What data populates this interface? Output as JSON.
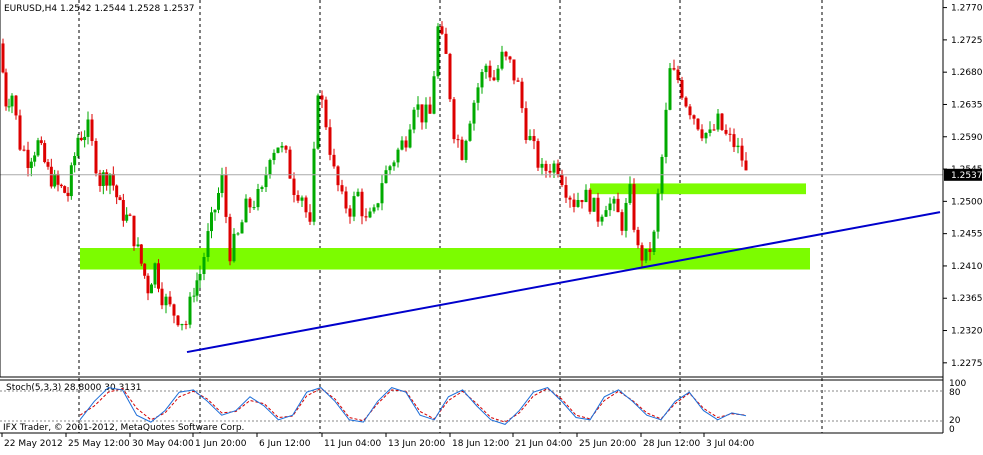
{
  "window": {
    "symbol_header": "EURUSD,H4  1.2542 1.2544 1.2528 1.2537",
    "copyright": "IFX Trader, © 2001-2012, MetaQuotes Software Corp."
  },
  "colors": {
    "background": "#ffffff",
    "bull": "#00aa00",
    "bear": "#dd0000",
    "zone": "#7cfc00",
    "trendline": "#0000cc",
    "grid": "#000000",
    "stoch_main": "#1e6fd9",
    "stoch_signal": "#d40000",
    "bid_tag": "#000000"
  },
  "price_axis": {
    "ticks": [
      "1.2770",
      "1.2725",
      "1.2680",
      "1.2635",
      "1.2590",
      "1.2545",
      "1.2500",
      "1.2455",
      "1.2410",
      "1.2365",
      "1.2320",
      "1.2275"
    ],
    "current_price": "1.2537"
  },
  "stoch_panel": {
    "title": "Stoch(5,3,3) 28.8000 30.3131",
    "axis_ticks": [
      "100",
      "80",
      "20",
      "0"
    ]
  },
  "time_axis": {
    "labels": [
      "22 May 2012",
      "25 May 12:00",
      "30 May 04:00",
      "1 Jun 20:00",
      "6 Jun 12:00",
      "11 Jun 04:00",
      "13 Jun 20:00",
      "18 Jun 12:00",
      "21 Jun 04:00",
      "25 Jun 20:00",
      "28 Jun 12:00",
      "3 Jul 04:00"
    ]
  },
  "chart_data": {
    "type": "candlestick",
    "symbol": "EURUSD",
    "timeframe": "H4",
    "ylim": [
      1.2265,
      1.2775
    ],
    "current_price": 1.2537,
    "ohlc": [
      1.2542,
      1.2544,
      1.2528,
      1.2537
    ],
    "close_path": [
      [
        0,
        1.272
      ],
      [
        6,
        1.264
      ],
      [
        12,
        1.265
      ],
      [
        20,
        1.258
      ],
      [
        28,
        1.256
      ],
      [
        38,
        1.258
      ],
      [
        48,
        1.254
      ],
      [
        58,
        1.252
      ],
      [
        68,
        1.251
      ],
      [
        78,
        1.259
      ],
      [
        88,
        1.26
      ],
      [
        100,
        1.253
      ],
      [
        110,
        1.254
      ],
      [
        120,
        1.249
      ],
      [
        130,
        1.247
      ],
      [
        138,
        1.243
      ],
      [
        148,
        1.238
      ],
      [
        155,
        1.241
      ],
      [
        162,
        1.237
      ],
      [
        170,
        1.235
      ],
      [
        178,
        1.234
      ],
      [
        186,
        1.233
      ],
      [
        194,
        1.238
      ],
      [
        200,
        1.24
      ],
      [
        208,
        1.245
      ],
      [
        215,
        1.249
      ],
      [
        222,
        1.253
      ],
      [
        230,
        1.243
      ],
      [
        238,
        1.245
      ],
      [
        246,
        1.249
      ],
      [
        254,
        1.25
      ],
      [
        262,
        1.251
      ],
      [
        270,
        1.257
      ],
      [
        278,
        1.258
      ],
      [
        286,
        1.256
      ],
      [
        294,
        1.252
      ],
      [
        302,
        1.251
      ],
      [
        310,
        1.246
      ],
      [
        318,
        1.266
      ],
      [
        326,
        1.261
      ],
      [
        334,
        1.254
      ],
      [
        342,
        1.25
      ],
      [
        350,
        1.249
      ],
      [
        358,
        1.251
      ],
      [
        366,
        1.247
      ],
      [
        374,
        1.248
      ],
      [
        382,
        1.253
      ],
      [
        390,
        1.255
      ],
      [
        398,
        1.257
      ],
      [
        406,
        1.259
      ],
      [
        414,
        1.264
      ],
      [
        422,
        1.262
      ],
      [
        430,
        1.262
      ],
      [
        438,
        1.274
      ],
      [
        446,
        1.27
      ],
      [
        454,
        1.26
      ],
      [
        462,
        1.257
      ],
      [
        470,
        1.262
      ],
      [
        478,
        1.266
      ],
      [
        486,
        1.269
      ],
      [
        494,
        1.267
      ],
      [
        502,
        1.27
      ],
      [
        510,
        1.269
      ],
      [
        518,
        1.266
      ],
      [
        526,
        1.26
      ],
      [
        534,
        1.257
      ],
      [
        542,
        1.254
      ],
      [
        550,
        1.255
      ],
      [
        558,
        1.255
      ],
      [
        566,
        1.252
      ],
      [
        574,
        1.25
      ],
      [
        582,
        1.251
      ],
      [
        590,
        1.25
      ],
      [
        598,
        1.248
      ],
      [
        606,
        1.25
      ],
      [
        614,
        1.249
      ],
      [
        622,
        1.247
      ],
      [
        630,
        1.251
      ],
      [
        638,
        1.243
      ],
      [
        646,
        1.242
      ],
      [
        654,
        1.245
      ],
      [
        662,
        1.256
      ],
      [
        670,
        1.268
      ],
      [
        678,
        1.267
      ],
      [
        686,
        1.264
      ],
      [
        694,
        1.262
      ],
      [
        702,
        1.26
      ],
      [
        710,
        1.259
      ],
      [
        718,
        1.261
      ],
      [
        726,
        1.259
      ],
      [
        734,
        1.258
      ],
      [
        742,
        1.256
      ],
      [
        746,
        1.2537
      ]
    ],
    "support_zones": [
      {
        "x_start": 80,
        "x_end": 810,
        "y_low": 1.2405,
        "y_high": 1.2435
      },
      {
        "x_start": 590,
        "x_end": 806,
        "y_low": 1.251,
        "y_high": 1.2525
      }
    ],
    "trendline": {
      "x1": 187,
      "y1": 1.229,
      "x2": 940,
      "y2": 1.2485
    },
    "stochastic": {
      "params": "5,3,3",
      "main": 28.8,
      "signal": 30.3131,
      "levels": [
        80,
        20
      ],
      "main_path": [
        20,
        60,
        90,
        85,
        30,
        15,
        40,
        80,
        85,
        60,
        30,
        40,
        70,
        50,
        20,
        30,
        80,
        90,
        60,
        20,
        15,
        60,
        90,
        80,
        30,
        20,
        70,
        85,
        50,
        20,
        10,
        40,
        80,
        90,
        60,
        25,
        20,
        70,
        85,
        60,
        30,
        20,
        60,
        80,
        40,
        20,
        35,
        28.8
      ],
      "signal_path": [
        30,
        50,
        80,
        88,
        45,
        20,
        35,
        70,
        82,
        65,
        35,
        38,
        62,
        55,
        25,
        28,
        72,
        88,
        65,
        25,
        18,
        55,
        85,
        82,
        38,
        22,
        62,
        82,
        55,
        25,
        15,
        35,
        72,
        88,
        65,
        30,
        22,
        62,
        82,
        62,
        35,
        22,
        55,
        78,
        45,
        25,
        33,
        30.3131
      ]
    }
  }
}
